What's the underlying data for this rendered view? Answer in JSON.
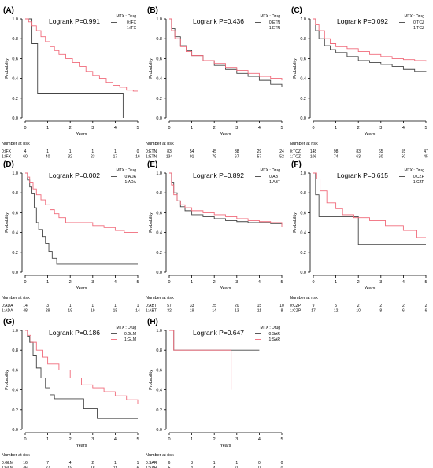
{
  "colors": {
    "group0": "#444444",
    "group1": "#f06a7a",
    "axis": "#000000"
  },
  "chart_data": [
    {
      "type": "line",
      "panel_label": "(A)",
      "title": "Logrank P=0.991",
      "xlabel": "Years",
      "ylabel": "Probability",
      "xlim": [
        0,
        5
      ],
      "ylim": [
        0,
        1
      ],
      "x_ticks": [
        0,
        1,
        2,
        3,
        4,
        5
      ],
      "y_ticks": [
        0,
        0.2,
        0.4,
        0.6,
        0.8,
        1.0
      ],
      "legend_title": "MTX : Drug",
      "legend_position": "top-right",
      "series": [
        {
          "name": "0:IFX",
          "group": 0,
          "x": [
            0,
            0.3,
            0.3,
            0.55,
            0.55,
            4.35,
            4.35
          ],
          "y": [
            1,
            1,
            0.75,
            0.75,
            0.25,
            0.25,
            0
          ]
        },
        {
          "name": "1:IFX",
          "group": 1,
          "x": [
            0,
            0.15,
            0.3,
            0.5,
            0.7,
            0.9,
            1.1,
            1.3,
            1.5,
            1.8,
            2.1,
            2.4,
            2.7,
            3.0,
            3.3,
            3.6,
            3.9,
            4.2,
            4.5,
            4.8,
            5.0
          ],
          "y": [
            1,
            0.97,
            0.93,
            0.88,
            0.82,
            0.77,
            0.72,
            0.68,
            0.64,
            0.6,
            0.56,
            0.52,
            0.47,
            0.43,
            0.4,
            0.36,
            0.33,
            0.31,
            0.28,
            0.27,
            0.27
          ]
        }
      ],
      "risk_table": {
        "title": "Number at risk",
        "x": [
          0,
          1,
          2,
          3,
          4,
          5
        ],
        "rows": [
          {
            "label": "0:IFX",
            "values": [
              4,
              1,
              1,
              1,
              1,
              0
            ]
          },
          {
            "label": "1:IFX",
            "values": [
              60,
              40,
              32,
              23,
              17,
              16
            ]
          }
        ]
      }
    },
    {
      "type": "line",
      "panel_label": "(B)",
      "title": "Logrank P=0.436",
      "xlabel": "Years",
      "ylabel": "Probability",
      "xlim": [
        0,
        5
      ],
      "ylim": [
        0,
        1
      ],
      "x_ticks": [
        0,
        1,
        2,
        3,
        4,
        5
      ],
      "y_ticks": [
        0,
        0.2,
        0.4,
        0.6,
        0.8,
        1.0
      ],
      "legend_title": "MTX : Drug",
      "legend_position": "top-right",
      "series": [
        {
          "name": "0:ETN",
          "group": 0,
          "x": [
            0,
            0.1,
            0.25,
            0.5,
            0.75,
            1.0,
            1.5,
            2.0,
            2.5,
            3.0,
            3.5,
            4.0,
            4.5,
            5.0
          ],
          "y": [
            1,
            0.9,
            0.82,
            0.73,
            0.68,
            0.63,
            0.58,
            0.53,
            0.49,
            0.45,
            0.42,
            0.38,
            0.34,
            0.31
          ]
        },
        {
          "name": "1:ETN",
          "group": 1,
          "x": [
            0,
            0.1,
            0.25,
            0.5,
            0.75,
            1.0,
            1.5,
            2.0,
            2.5,
            3.0,
            3.5,
            4.0,
            4.5,
            5.0
          ],
          "y": [
            1,
            0.88,
            0.8,
            0.72,
            0.67,
            0.63,
            0.58,
            0.55,
            0.51,
            0.48,
            0.45,
            0.42,
            0.4,
            0.38
          ]
        }
      ],
      "risk_table": {
        "title": "Number at risk",
        "x": [
          0,
          1,
          2,
          3,
          4,
          5
        ],
        "rows": [
          {
            "label": "0:ETN",
            "values": [
              83,
              54,
              45,
              38,
              29,
              24
            ]
          },
          {
            "label": "1:ETN",
            "values": [
              134,
              91,
              79,
              67,
              57,
              52
            ]
          }
        ]
      }
    },
    {
      "type": "line",
      "panel_label": "(C)",
      "title": "Logrank P=0.092",
      "xlabel": "Years",
      "ylabel": "Probability",
      "xlim": [
        0,
        5
      ],
      "ylim": [
        0,
        1
      ],
      "x_ticks": [
        0,
        1,
        2,
        3,
        4,
        5
      ],
      "y_ticks": [
        0,
        0.2,
        0.4,
        0.6,
        0.8,
        1.0
      ],
      "legend_title": "MTX : Drug",
      "legend_position": "top-right",
      "series": [
        {
          "name": "0:TCZ",
          "group": 0,
          "x": [
            0,
            0.1,
            0.25,
            0.5,
            0.75,
            1.0,
            1.5,
            2.0,
            2.5,
            3.0,
            3.5,
            4.0,
            4.5,
            5.0
          ],
          "y": [
            1,
            0.88,
            0.8,
            0.73,
            0.69,
            0.66,
            0.62,
            0.58,
            0.56,
            0.54,
            0.52,
            0.49,
            0.47,
            0.46
          ]
        },
        {
          "name": "1:TCZ",
          "group": 1,
          "x": [
            0,
            0.1,
            0.25,
            0.5,
            0.75,
            1.0,
            1.5,
            2.0,
            2.5,
            3.0,
            3.5,
            4.0,
            4.5,
            5.0
          ],
          "y": [
            1,
            0.94,
            0.88,
            0.8,
            0.75,
            0.72,
            0.7,
            0.67,
            0.64,
            0.62,
            0.6,
            0.59,
            0.58,
            0.57
          ]
        }
      ],
      "risk_table": {
        "title": "Number at risk",
        "x": [
          0,
          1,
          2,
          3,
          4,
          5
        ],
        "rows": [
          {
            "label": "0:TCZ",
            "values": [
              148,
              98,
              83,
              65,
              55,
              47
            ]
          },
          {
            "label": "1:TCZ",
            "values": [
              106,
              74,
              63,
              60,
              50,
              45
            ]
          }
        ]
      }
    },
    {
      "type": "line",
      "panel_label": "(D)",
      "title": "Logrank P=0.002",
      "xlabel": "Years",
      "ylabel": "Probability",
      "xlim": [
        0,
        5
      ],
      "ylim": [
        0,
        1
      ],
      "x_ticks": [
        0,
        1,
        2,
        3,
        4,
        5
      ],
      "y_ticks": [
        0,
        0.2,
        0.4,
        0.6,
        0.8,
        1.0
      ],
      "legend_title": "MTX : Drug",
      "legend_position": "top-right",
      "series": [
        {
          "name": "0:ADA",
          "group": 0,
          "x": [
            0,
            0.1,
            0.2,
            0.3,
            0.4,
            0.5,
            0.6,
            0.75,
            0.9,
            1.05,
            1.2,
            1.4,
            5.0
          ],
          "y": [
            1,
            0.93,
            0.86,
            0.79,
            0.65,
            0.5,
            0.43,
            0.36,
            0.29,
            0.21,
            0.14,
            0.08,
            0.08
          ]
        },
        {
          "name": "1:ADA",
          "group": 1,
          "x": [
            0,
            0.1,
            0.2,
            0.35,
            0.5,
            0.7,
            0.9,
            1.1,
            1.3,
            1.5,
            1.8,
            2.2,
            2.6,
            3.0,
            3.5,
            4.0,
            4.4,
            5.0
          ],
          "y": [
            1,
            0.96,
            0.9,
            0.84,
            0.78,
            0.73,
            0.68,
            0.63,
            0.59,
            0.55,
            0.5,
            0.5,
            0.5,
            0.47,
            0.45,
            0.42,
            0.4,
            0.4
          ]
        }
      ],
      "risk_table": {
        "title": "Number at risk",
        "x": [
          0,
          1,
          2,
          3,
          4,
          5
        ],
        "rows": [
          {
            "label": "0:ADA",
            "values": [
              14,
              3,
              1,
              1,
              1,
              1
            ]
          },
          {
            "label": "1:ADA",
            "values": [
              48,
              29,
              19,
              19,
              15,
              14
            ]
          }
        ]
      }
    },
    {
      "type": "line",
      "panel_label": "(E)",
      "title": "Logrank P=0.892",
      "xlabel": "Years",
      "ylabel": "Probability",
      "xlim": [
        0,
        5
      ],
      "ylim": [
        0,
        1
      ],
      "x_ticks": [
        0,
        1,
        2,
        3,
        4,
        5
      ],
      "y_ticks": [
        0,
        0.2,
        0.4,
        0.6,
        0.8,
        1.0
      ],
      "legend_title": "MTX : Drug",
      "legend_position": "top-right",
      "series": [
        {
          "name": "0:ABT",
          "group": 0,
          "x": [
            0,
            0.1,
            0.2,
            0.35,
            0.5,
            0.7,
            1.0,
            1.5,
            2.0,
            2.5,
            3.0,
            3.5,
            4.0,
            4.5,
            5.0
          ],
          "y": [
            1,
            0.9,
            0.8,
            0.72,
            0.66,
            0.62,
            0.58,
            0.56,
            0.54,
            0.52,
            0.51,
            0.5,
            0.5,
            0.49,
            0.48
          ]
        },
        {
          "name": "1:ABT",
          "group": 1,
          "x": [
            0,
            0.1,
            0.2,
            0.35,
            0.5,
            0.7,
            1.0,
            1.5,
            2.0,
            2.5,
            3.0,
            3.5,
            4.0,
            4.5,
            5.0
          ],
          "y": [
            1,
            0.88,
            0.78,
            0.72,
            0.68,
            0.65,
            0.62,
            0.6,
            0.58,
            0.56,
            0.54,
            0.52,
            0.51,
            0.5,
            0.46
          ]
        }
      ],
      "risk_table": {
        "title": "Number at risk",
        "x": [
          0,
          1,
          2,
          3,
          4,
          5
        ],
        "rows": [
          {
            "label": "0:ABT",
            "values": [
              57,
              33,
              25,
              20,
              15,
              10
            ]
          },
          {
            "label": "1:ABT",
            "values": [
              32,
              19,
              14,
              13,
              11,
              8
            ]
          }
        ]
      }
    },
    {
      "type": "line",
      "panel_label": "(F)",
      "title": "Logrank P=0.615",
      "xlabel": "Years",
      "ylabel": "Probability",
      "xlim": [
        0,
        5
      ],
      "ylim": [
        0,
        1
      ],
      "x_ticks": [
        0,
        1,
        2,
        3,
        4,
        5
      ],
      "y_ticks": [
        0,
        0.2,
        0.4,
        0.6,
        0.8,
        1.0
      ],
      "legend_title": "MTX : Drug",
      "legend_position": "top-right",
      "series": [
        {
          "name": "0:CZP",
          "group": 0,
          "x": [
            0,
            0.1,
            0.25,
            1.0,
            2.0,
            2.0,
            5.0
          ],
          "y": [
            1,
            0.78,
            0.56,
            0.56,
            0.56,
            0.28,
            0.28
          ]
        },
        {
          "name": "1:CZP",
          "group": 1,
          "x": [
            0,
            0.15,
            0.3,
            0.6,
            1.0,
            1.3,
            1.8,
            2.5,
            3.2,
            4.0,
            4.6,
            5.0
          ],
          "y": [
            1,
            0.94,
            0.82,
            0.7,
            0.64,
            0.58,
            0.55,
            0.52,
            0.47,
            0.42,
            0.35,
            0.35
          ]
        }
      ],
      "risk_table": {
        "title": "Number at risk",
        "x": [
          0,
          1,
          2,
          3,
          4,
          5
        ],
        "rows": [
          {
            "label": "0:CZP",
            "values": [
              9,
              5,
              2,
              2,
              2,
              2
            ]
          },
          {
            "label": "1:CZP",
            "values": [
              17,
              12,
              10,
              8,
              6,
              6
            ]
          }
        ]
      }
    },
    {
      "type": "line",
      "panel_label": "(G)",
      "title": "Logrank P=0.186",
      "xlabel": "Years",
      "ylabel": "Probability",
      "xlim": [
        0,
        5
      ],
      "ylim": [
        0,
        1
      ],
      "x_ticks": [
        0,
        1,
        2,
        3,
        4,
        5
      ],
      "y_ticks": [
        0,
        0.2,
        0.4,
        0.6,
        0.8,
        1.0
      ],
      "legend_title": "MTX : Drug",
      "legend_position": "top-right",
      "series": [
        {
          "name": "0:GLM",
          "group": 0,
          "x": [
            0,
            0.1,
            0.2,
            0.35,
            0.5,
            0.7,
            0.9,
            1.1,
            1.3,
            2.0,
            2.6,
            3.2,
            3.2,
            5.0
          ],
          "y": [
            1,
            0.94,
            0.88,
            0.75,
            0.62,
            0.52,
            0.42,
            0.35,
            0.31,
            0.31,
            0.21,
            0.21,
            0.11,
            0.11
          ]
        },
        {
          "name": "1:GLM",
          "group": 1,
          "x": [
            0,
            0.1,
            0.25,
            0.5,
            0.75,
            1.0,
            1.5,
            2.0,
            2.5,
            3.0,
            3.5,
            4.0,
            4.5,
            5.0
          ],
          "y": [
            1,
            0.95,
            0.88,
            0.8,
            0.73,
            0.66,
            0.6,
            0.52,
            0.45,
            0.42,
            0.38,
            0.34,
            0.3,
            0.26
          ]
        }
      ],
      "risk_table": {
        "title": "Number at risk",
        "x": [
          0,
          1,
          2,
          3,
          4,
          5
        ],
        "rows": [
          {
            "label": "0:GLM",
            "values": [
              16,
              7,
              4,
              2,
              1,
              1
            ]
          },
          {
            "label": "1:GLM",
            "values": [
              46,
              27,
              19,
              18,
              11,
              6
            ]
          }
        ]
      }
    },
    {
      "type": "line",
      "panel_label": "(H)",
      "title": "Logrank P=0.647",
      "xlabel": "Years",
      "ylabel": "Probability",
      "xlim": [
        0,
        5
      ],
      "ylim": [
        0,
        1
      ],
      "x_ticks": [
        0,
        1,
        2,
        3,
        4,
        5
      ],
      "y_ticks": [
        0,
        0.2,
        0.4,
        0.6,
        0.8,
        1.0
      ],
      "legend_title": "MTX : Drug",
      "legend_position": "top-right",
      "series": [
        {
          "name": "0:SAR",
          "group": 0,
          "x": [
            0,
            0.2,
            0.2,
            4.0
          ],
          "y": [
            1,
            1,
            0.8,
            0.8
          ]
        },
        {
          "name": "1:SAR",
          "group": 1,
          "x": [
            0,
            0.2,
            0.2,
            2.75,
            2.75
          ],
          "y": [
            1,
            1,
            0.8,
            0.8,
            0.4
          ]
        }
      ],
      "risk_table": {
        "title": "Number at risk",
        "x": [
          0,
          1,
          2,
          3,
          4,
          5
        ],
        "rows": [
          {
            "label": "0:SAR",
            "values": [
              6,
              3,
              1,
              1,
              0,
              0
            ]
          },
          {
            "label": "1:SAR",
            "values": [
              5,
              4,
              4,
              0,
              0,
              0
            ]
          }
        ]
      }
    }
  ]
}
